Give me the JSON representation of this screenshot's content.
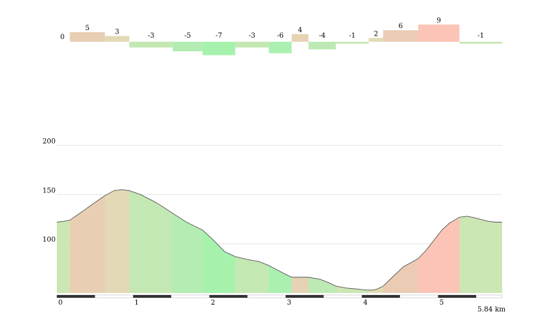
{
  "chart_data": [
    {
      "type": "bar",
      "title": "",
      "description_role": "segment gradient bars (%)",
      "segments": [
        {
          "start_km": 0.17,
          "end_km": 0.63,
          "grade": 5,
          "label": "5",
          "color": "#e8cfb4"
        },
        {
          "start_km": 0.63,
          "end_km": 0.95,
          "grade": 3,
          "label": "3",
          "color": "#e3d9b6"
        },
        {
          "start_km": 0.95,
          "end_km": 1.52,
          "grade": -3,
          "label": "-3",
          "color": "#c4e8b4"
        },
        {
          "start_km": 1.52,
          "end_km": 1.91,
          "grade": -5,
          "label": "-5",
          "color": "#b3edb3"
        },
        {
          "start_km": 1.91,
          "end_km": 2.34,
          "grade": -7,
          "label": "-7",
          "color": "#a6f2ad"
        },
        {
          "start_km": 2.34,
          "end_km": 2.78,
          "grade": -3,
          "label": "-3",
          "color": "#c4e8b4"
        },
        {
          "start_km": 2.78,
          "end_km": 3.08,
          "grade": -6,
          "label": "-6",
          "color": "#abf0b0"
        },
        {
          "start_km": 3.08,
          "end_km": 3.3,
          "grade": 4,
          "label": "4",
          "color": "#e6d3b5"
        },
        {
          "start_km": 3.3,
          "end_km": 3.66,
          "grade": -4,
          "label": "-4",
          "color": "#bdeab4"
        },
        {
          "start_km": 3.66,
          "end_km": 4.09,
          "grade": -1,
          "label": "-1",
          "color": "#cce6b4"
        },
        {
          "start_km": 4.09,
          "end_km": 4.28,
          "grade": 2,
          "label": "2",
          "color": "#e0dcb6"
        },
        {
          "start_km": 4.28,
          "end_km": 4.74,
          "grade": 6,
          "label": "6",
          "color": "#ebcbb4"
        },
        {
          "start_km": 4.74,
          "end_km": 5.28,
          "grade": 9,
          "label": "9",
          "color": "#fbc4b6"
        },
        {
          "start_km": 5.28,
          "end_km": 5.84,
          "grade": -1,
          "label": "-1",
          "color": "#cce6b4"
        }
      ],
      "zero_label": "0"
    },
    {
      "type": "area",
      "title": "",
      "xlabel": "",
      "ylabel": "",
      "x_unit_label": "5.84 km",
      "xlim": [
        0,
        5.84
      ],
      "ylim": [
        50,
        210
      ],
      "x_ticks": [
        0,
        1,
        2,
        3,
        4,
        5
      ],
      "y_ticks": [
        100,
        150,
        200
      ],
      "grid": true,
      "series": [
        {
          "x": [
            0,
            0.1,
            0.17,
            0.3,
            0.5,
            0.63,
            0.75,
            0.85,
            0.95,
            1.1,
            1.3,
            1.52,
            1.7,
            1.91,
            2.05,
            2.2,
            2.34,
            2.5,
            2.65,
            2.78,
            2.9,
            3.0,
            3.08,
            3.2,
            3.3,
            3.45,
            3.55,
            3.66,
            3.8,
            3.95,
            4.05,
            4.09,
            4.15,
            4.2,
            4.28,
            4.4,
            4.55,
            4.65,
            4.74,
            4.85,
            4.95,
            5.05,
            5.15,
            5.28,
            5.38,
            5.45,
            5.55,
            5.65,
            5.75,
            5.84
          ],
          "y": [
            122,
            123,
            124,
            131,
            142,
            149,
            154,
            155,
            154,
            150,
            142,
            131,
            122,
            114,
            104,
            92,
            87,
            84,
            82,
            78,
            73,
            69,
            66,
            66,
            66,
            64,
            61,
            57,
            55,
            54,
            53,
            53,
            53,
            54,
            57,
            66,
            77,
            81,
            85,
            94,
            104,
            114,
            121,
            127,
            128,
            127,
            125,
            123,
            122,
            122
          ]
        }
      ]
    }
  ]
}
